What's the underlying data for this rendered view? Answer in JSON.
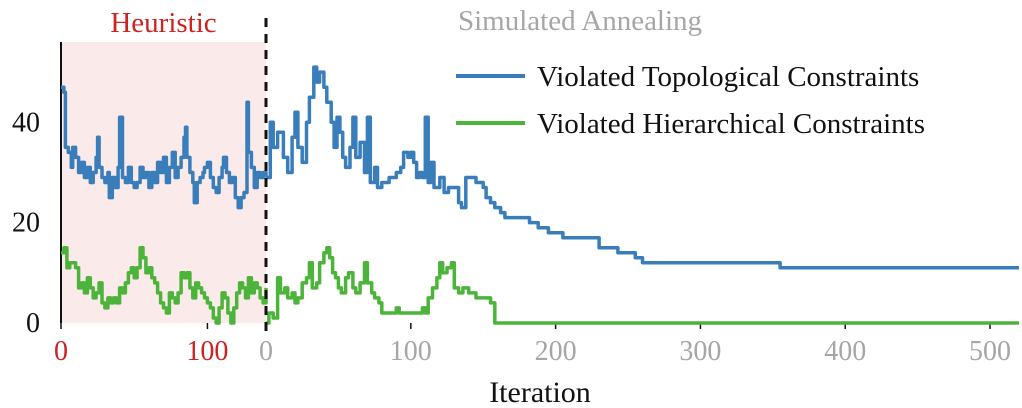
{
  "chart_data": {
    "type": "line",
    "xlabel": "Iteration",
    "phases": [
      {
        "name": "Heuristic",
        "x": [
          0,
          140
        ],
        "ticks": [
          0,
          100
        ],
        "color": "#cc2222",
        "shade": "#fbeaea"
      },
      {
        "name": "Simulated Annealing",
        "x": [
          0,
          520
        ],
        "ticks": [
          0,
          100,
          200,
          300,
          400,
          500
        ],
        "color": "#a6a6a6"
      }
    ],
    "y_ticks": [
      0,
      20,
      40
    ],
    "ylim": [
      0,
      56
    ],
    "legend_position": "top-right",
    "grid": false,
    "series": [
      {
        "name": "Violated Topological Constraints",
        "color": "#3a7dbb",
        "heuristic": [
          [
            0,
            47
          ],
          [
            2,
            46
          ],
          [
            3,
            35
          ],
          [
            5,
            34
          ],
          [
            7,
            31
          ],
          [
            8,
            35
          ],
          [
            10,
            33
          ],
          [
            12,
            30
          ],
          [
            14,
            32
          ],
          [
            16,
            29
          ],
          [
            18,
            31
          ],
          [
            20,
            28
          ],
          [
            22,
            30
          ],
          [
            24,
            33
          ],
          [
            25,
            37
          ],
          [
            26,
            31
          ],
          [
            28,
            29
          ],
          [
            30,
            28
          ],
          [
            32,
            30
          ],
          [
            33,
            25
          ],
          [
            35,
            29
          ],
          [
            37,
            27
          ],
          [
            39,
            31
          ],
          [
            40,
            41
          ],
          [
            42,
            29
          ],
          [
            44,
            28
          ],
          [
            46,
            31
          ],
          [
            48,
            28
          ],
          [
            50,
            27
          ],
          [
            52,
            28
          ],
          [
            54,
            31
          ],
          [
            56,
            29
          ],
          [
            58,
            30
          ],
          [
            60,
            27
          ],
          [
            62,
            30
          ],
          [
            64,
            28
          ],
          [
            66,
            32
          ],
          [
            68,
            30
          ],
          [
            70,
            33
          ],
          [
            72,
            28
          ],
          [
            74,
            31
          ],
          [
            76,
            34
          ],
          [
            78,
            29
          ],
          [
            80,
            31
          ],
          [
            82,
            33
          ],
          [
            84,
            37
          ],
          [
            85,
            39
          ],
          [
            86,
            33
          ],
          [
            88,
            30
          ],
          [
            90,
            28
          ],
          [
            91,
            24
          ],
          [
            93,
            28
          ],
          [
            95,
            29
          ],
          [
            97,
            30
          ],
          [
            98,
            31
          ],
          [
            100,
            32
          ],
          [
            102,
            29
          ],
          [
            104,
            27
          ],
          [
            106,
            26
          ],
          [
            108,
            29
          ],
          [
            110,
            31
          ],
          [
            111,
            33
          ],
          [
            113,
            30
          ],
          [
            115,
            28
          ],
          [
            117,
            29
          ],
          [
            119,
            25
          ],
          [
            121,
            23
          ],
          [
            123,
            25
          ],
          [
            125,
            26
          ],
          [
            127,
            44
          ],
          [
            128,
            34
          ],
          [
            130,
            31
          ],
          [
            132,
            27
          ],
          [
            134,
            30
          ],
          [
            136,
            29
          ],
          [
            138,
            30
          ],
          [
            140,
            29
          ]
        ],
        "sa": [
          [
            0,
            29
          ],
          [
            3,
            40
          ],
          [
            5,
            35
          ],
          [
            8,
            38
          ],
          [
            12,
            33
          ],
          [
            15,
            30
          ],
          [
            18,
            37
          ],
          [
            20,
            42
          ],
          [
            22,
            35
          ],
          [
            25,
            32
          ],
          [
            28,
            40
          ],
          [
            30,
            45
          ],
          [
            33,
            51
          ],
          [
            35,
            48
          ],
          [
            37,
            50
          ],
          [
            40,
            47
          ],
          [
            42,
            44
          ],
          [
            45,
            40
          ],
          [
            47,
            35
          ],
          [
            49,
            41
          ],
          [
            51,
            38
          ],
          [
            53,
            33
          ],
          [
            55,
            31
          ],
          [
            58,
            35
          ],
          [
            60,
            41
          ],
          [
            62,
            33
          ],
          [
            65,
            36
          ],
          [
            68,
            30
          ],
          [
            70,
            41
          ],
          [
            72,
            28
          ],
          [
            75,
            31
          ],
          [
            77,
            27
          ],
          [
            80,
            28
          ],
          [
            85,
            29
          ],
          [
            90,
            30
          ],
          [
            93,
            31
          ],
          [
            95,
            34
          ],
          [
            98,
            33
          ],
          [
            100,
            34
          ],
          [
            102,
            32
          ],
          [
            104,
            29
          ],
          [
            106,
            30
          ],
          [
            108,
            29
          ],
          [
            110,
            41
          ],
          [
            112,
            28
          ],
          [
            114,
            32
          ],
          [
            116,
            27
          ],
          [
            120,
            29
          ],
          [
            123,
            26
          ],
          [
            126,
            27
          ],
          [
            130,
            27
          ],
          [
            133,
            24
          ],
          [
            135,
            23
          ],
          [
            138,
            29
          ],
          [
            145,
            28
          ],
          [
            150,
            27
          ],
          [
            152,
            25
          ],
          [
            155,
            24
          ],
          [
            158,
            23
          ],
          [
            162,
            22
          ],
          [
            165,
            21
          ],
          [
            172,
            21
          ],
          [
            182,
            20
          ],
          [
            188,
            19
          ],
          [
            195,
            18
          ],
          [
            205,
            17
          ],
          [
            220,
            17
          ],
          [
            230,
            15
          ],
          [
            243,
            14
          ],
          [
            255,
            13
          ],
          [
            260,
            12
          ],
          [
            300,
            12
          ],
          [
            355,
            11
          ],
          [
            520,
            11
          ]
        ]
      },
      {
        "name": "Violated Hierarchical Constraints",
        "color": "#4cb43a",
        "heuristic": [
          [
            0,
            14
          ],
          [
            2,
            15
          ],
          [
            4,
            11
          ],
          [
            6,
            12
          ],
          [
            10,
            11
          ],
          [
            12,
            7
          ],
          [
            14,
            8
          ],
          [
            16,
            6
          ],
          [
            18,
            9
          ],
          [
            20,
            7
          ],
          [
            22,
            5
          ],
          [
            24,
            6
          ],
          [
            26,
            8
          ],
          [
            28,
            4
          ],
          [
            30,
            3
          ],
          [
            32,
            5
          ],
          [
            34,
            4
          ],
          [
            36,
            5
          ],
          [
            38,
            4
          ],
          [
            40,
            7
          ],
          [
            42,
            6
          ],
          [
            44,
            8
          ],
          [
            46,
            10
          ],
          [
            48,
            11
          ],
          [
            50,
            9
          ],
          [
            52,
            11
          ],
          [
            54,
            15
          ],
          [
            56,
            13
          ],
          [
            58,
            10
          ],
          [
            60,
            11
          ],
          [
            62,
            9
          ],
          [
            64,
            8
          ],
          [
            66,
            6
          ],
          [
            68,
            4
          ],
          [
            70,
            3
          ],
          [
            72,
            2
          ],
          [
            74,
            6
          ],
          [
            76,
            5
          ],
          [
            78,
            4
          ],
          [
            80,
            6
          ],
          [
            82,
            10
          ],
          [
            84,
            9
          ],
          [
            86,
            10
          ],
          [
            88,
            7
          ],
          [
            90,
            5
          ],
          [
            92,
            8
          ],
          [
            94,
            7
          ],
          [
            96,
            6
          ],
          [
            98,
            5
          ],
          [
            100,
            4
          ],
          [
            102,
            3
          ],
          [
            104,
            1
          ],
          [
            106,
            0
          ],
          [
            108,
            3
          ],
          [
            110,
            6
          ],
          [
            112,
            5
          ],
          [
            114,
            2
          ],
          [
            116,
            0
          ],
          [
            118,
            3
          ],
          [
            120,
            6
          ],
          [
            122,
            8
          ],
          [
            124,
            7
          ],
          [
            126,
            5
          ],
          [
            128,
            9
          ],
          [
            130,
            6
          ],
          [
            132,
            8
          ],
          [
            134,
            7
          ],
          [
            136,
            5
          ],
          [
            138,
            4
          ],
          [
            140,
            7
          ]
        ],
        "sa": [
          [
            0,
            0
          ],
          [
            2,
            2
          ],
          [
            5,
            1
          ],
          [
            8,
            9
          ],
          [
            10,
            6
          ],
          [
            13,
            7
          ],
          [
            15,
            5
          ],
          [
            18,
            6
          ],
          [
            20,
            4
          ],
          [
            22,
            5
          ],
          [
            25,
            8
          ],
          [
            28,
            9
          ],
          [
            30,
            12
          ],
          [
            32,
            7
          ],
          [
            35,
            8
          ],
          [
            37,
            12
          ],
          [
            40,
            14
          ],
          [
            42,
            15
          ],
          [
            44,
            13
          ],
          [
            46,
            10
          ],
          [
            48,
            9
          ],
          [
            50,
            7
          ],
          [
            52,
            6
          ],
          [
            55,
            9
          ],
          [
            57,
            10
          ],
          [
            60,
            7
          ],
          [
            62,
            6
          ],
          [
            65,
            8
          ],
          [
            68,
            12
          ],
          [
            70,
            8
          ],
          [
            73,
            6
          ],
          [
            75,
            5
          ],
          [
            78,
            4
          ],
          [
            80,
            2
          ],
          [
            85,
            2
          ],
          [
            90,
            3
          ],
          [
            92,
            2
          ],
          [
            95,
            2
          ],
          [
            100,
            2
          ],
          [
            105,
            2
          ],
          [
            108,
            3
          ],
          [
            110,
            2
          ],
          [
            112,
            5
          ],
          [
            115,
            7
          ],
          [
            118,
            9
          ],
          [
            120,
            12
          ],
          [
            122,
            10
          ],
          [
            125,
            11
          ],
          [
            128,
            12
          ],
          [
            130,
            7
          ],
          [
            133,
            6
          ],
          [
            136,
            7
          ],
          [
            140,
            6
          ],
          [
            145,
            5
          ],
          [
            150,
            5
          ],
          [
            155,
            4
          ],
          [
            158,
            0
          ],
          [
            520,
            0
          ]
        ]
      }
    ]
  }
}
